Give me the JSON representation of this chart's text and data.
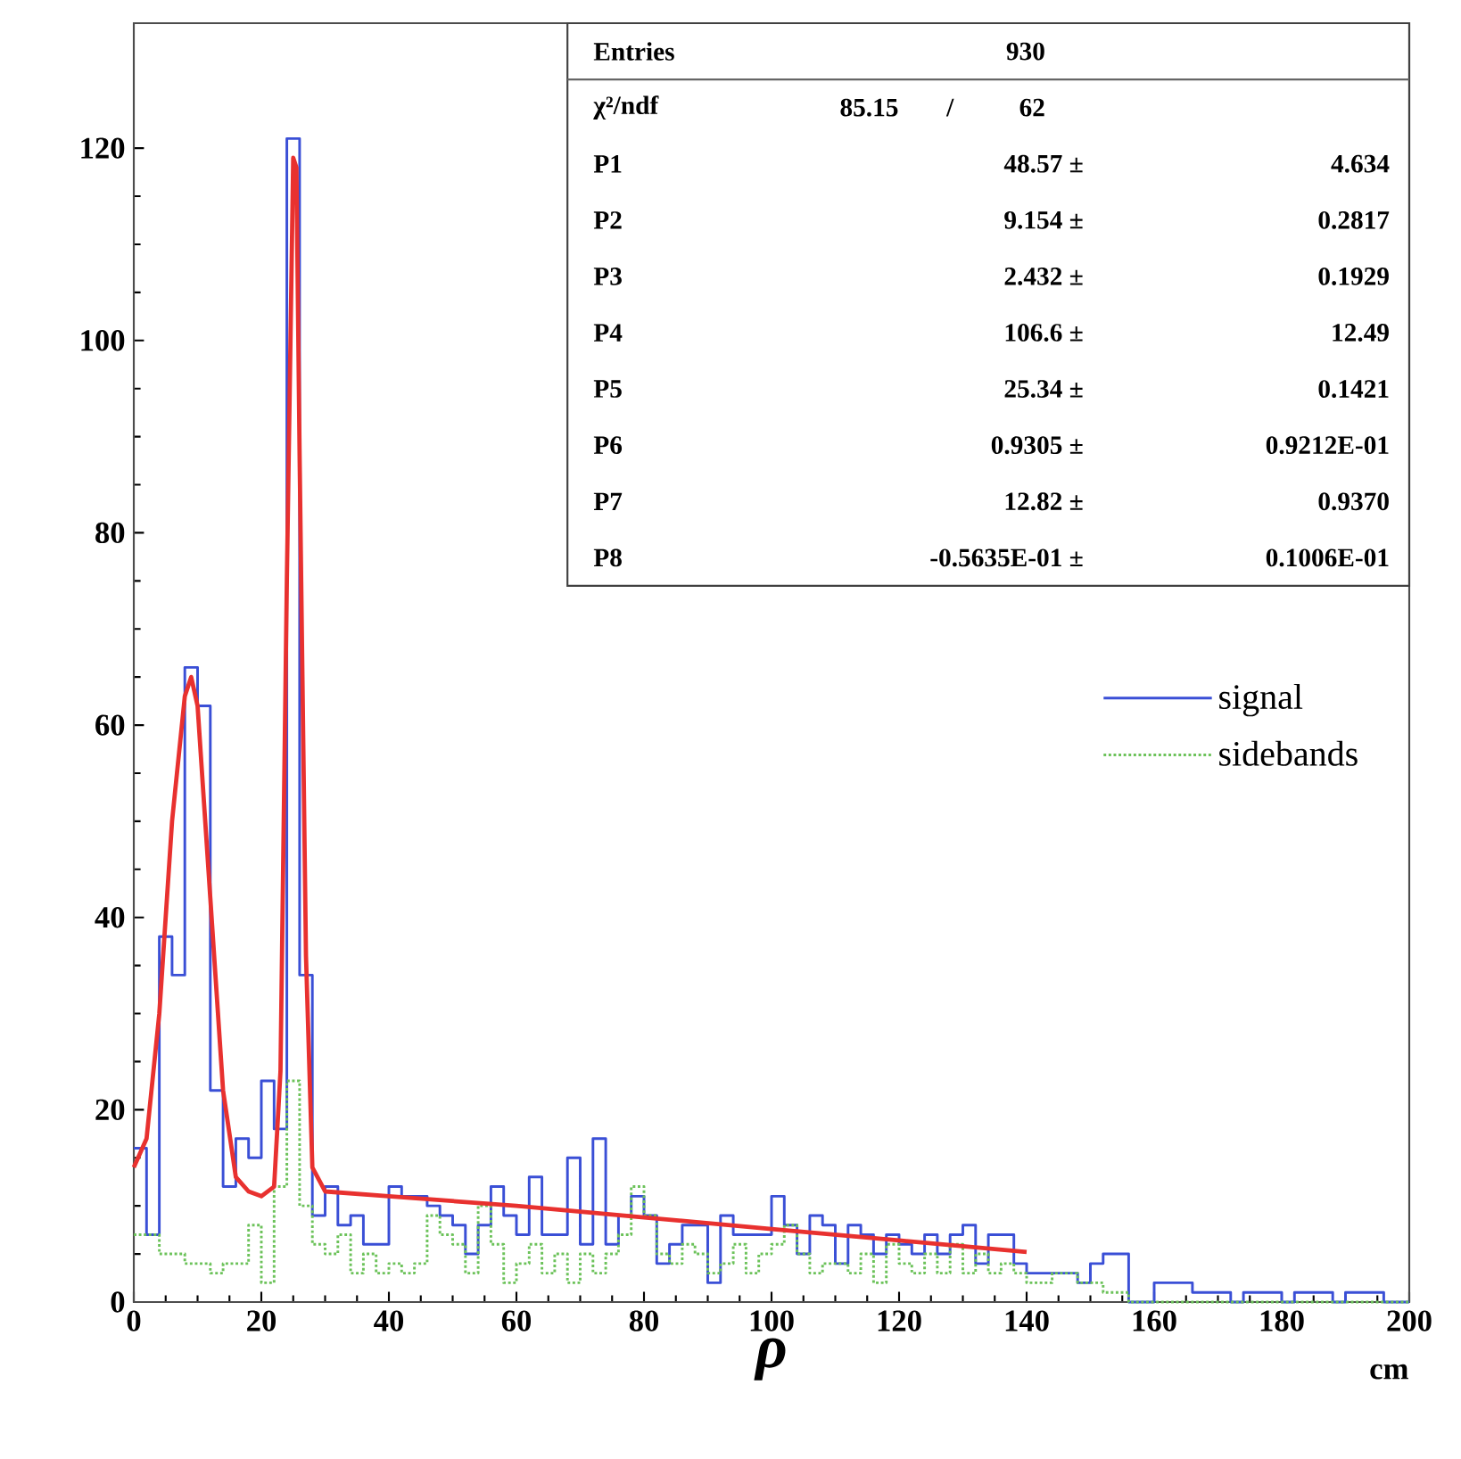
{
  "chart_data": {
    "type": "histogram",
    "xlabel": "ρ",
    "bins": [
      0,
      2,
      4,
      6,
      8,
      10,
      12,
      14,
      16,
      18,
      20,
      22,
      24,
      26,
      28,
      30,
      32,
      34,
      36,
      38,
      40,
      42,
      44,
      46,
      48,
      50,
      52,
      54,
      56,
      58,
      60,
      62,
      64,
      66,
      68,
      70,
      72,
      74,
      76,
      78,
      80,
      82,
      84,
      86,
      88,
      90,
      92,
      94,
      96,
      98,
      100,
      102,
      104,
      106,
      108,
      110,
      112,
      114,
      116,
      118,
      120,
      122,
      124,
      126,
      128,
      130,
      132,
      134,
      136,
      138,
      140,
      142,
      144,
      146,
      148,
      150,
      152,
      154,
      156,
      158,
      160,
      162,
      164,
      166,
      168,
      170,
      172,
      174,
      176,
      178,
      180,
      182,
      184,
      186,
      188,
      190,
      192,
      194,
      196,
      198,
      200
    ],
    "series": [
      {
        "name": "signal",
        "color": "#3a4fd6",
        "line_style": "solid",
        "values": [
          16,
          7,
          38,
          34,
          66,
          62,
          22,
          12,
          17,
          15,
          23,
          18,
          121,
          34,
          9,
          12,
          8,
          9,
          6,
          6,
          12,
          11,
          11,
          10,
          9,
          8,
          5,
          8,
          12,
          9,
          7,
          13,
          7,
          7,
          15,
          6,
          17,
          6,
          9,
          11,
          9,
          4,
          6,
          8,
          8,
          2,
          9,
          7,
          7,
          7,
          11,
          8,
          5,
          9,
          8,
          4,
          8,
          7,
          5,
          7,
          6,
          5,
          7,
          5,
          7,
          8,
          4,
          7,
          7,
          4,
          3,
          3,
          3,
          3,
          2,
          4,
          5,
          5,
          0,
          0,
          2,
          2,
          2,
          1,
          1,
          1,
          0,
          1,
          1,
          1,
          0,
          1,
          1,
          1,
          0,
          1,
          1,
          1,
          0,
          0
        ]
      },
      {
        "name": "sidebands",
        "color": "#6cc25a",
        "line_style": "dotted",
        "values": [
          7,
          7,
          5,
          5,
          4,
          4,
          3,
          4,
          4,
          8,
          2,
          12,
          23,
          10,
          6,
          5,
          7,
          3,
          5,
          3,
          4,
          3,
          4,
          9,
          7,
          6,
          3,
          10,
          6,
          2,
          4,
          6,
          3,
          5,
          2,
          5,
          3,
          5,
          7,
          12,
          9,
          5,
          4,
          6,
          5,
          3,
          4,
          6,
          3,
          5,
          6,
          8,
          5,
          3,
          4,
          4,
          3,
          5,
          2,
          6,
          4,
          3,
          5,
          3,
          6,
          3,
          5,
          3,
          4,
          3,
          2,
          2,
          3,
          3,
          2,
          2,
          1,
          1,
          0,
          0,
          0,
          0,
          0,
          0,
          0,
          0,
          0,
          0,
          0,
          0,
          0,
          0,
          0,
          0,
          0,
          0,
          0,
          0,
          0,
          0
        ]
      },
      {
        "type": "line",
        "color": "#e8312f",
        "x": [
          0,
          2,
          4,
          6,
          8,
          9,
          10,
          12,
          14,
          16,
          18,
          20,
          22,
          23,
          24,
          25,
          25.5,
          26,
          27,
          28,
          30,
          40,
          60,
          80,
          100,
          120,
          140
        ],
        "values": [
          14,
          17,
          30,
          50,
          63,
          65,
          62,
          42,
          22,
          13,
          11.5,
          11,
          12,
          24,
          75,
          119,
          118,
          88,
          36,
          14,
          11.5,
          11,
          10,
          8.8,
          7.6,
          6.4,
          5.2
        ]
      }
    ],
    "xlim": [
      0,
      200
    ],
    "xticks": [
      0,
      20,
      40,
      60,
      80,
      100,
      120,
      140,
      160,
      180,
      200
    ],
    "ylim": [
      0,
      133
    ],
    "yticks": [
      0,
      20,
      40,
      60,
      80,
      100,
      120
    ],
    "legend": "right",
    "annotations": [
      "Entries",
      "930",
      "χ²/ndf",
      "85.15",
      "/",
      "62",
      "P1",
      "48.57 ±",
      "4.634",
      "P2",
      "9.154 ±",
      "0.2817",
      "P3",
      "2.432 ±",
      "0.1929",
      "P4",
      "106.6 ±",
      "12.49",
      "P5",
      "25.34 ±",
      "0.1421",
      "P6",
      "0.9305 ±",
      "0.9212E-01",
      "P7",
      "12.82 ±",
      "0.9370",
      "P8",
      "-0.5635E-01 ±",
      "0.1006E-01",
      "cm"
    ]
  }
}
